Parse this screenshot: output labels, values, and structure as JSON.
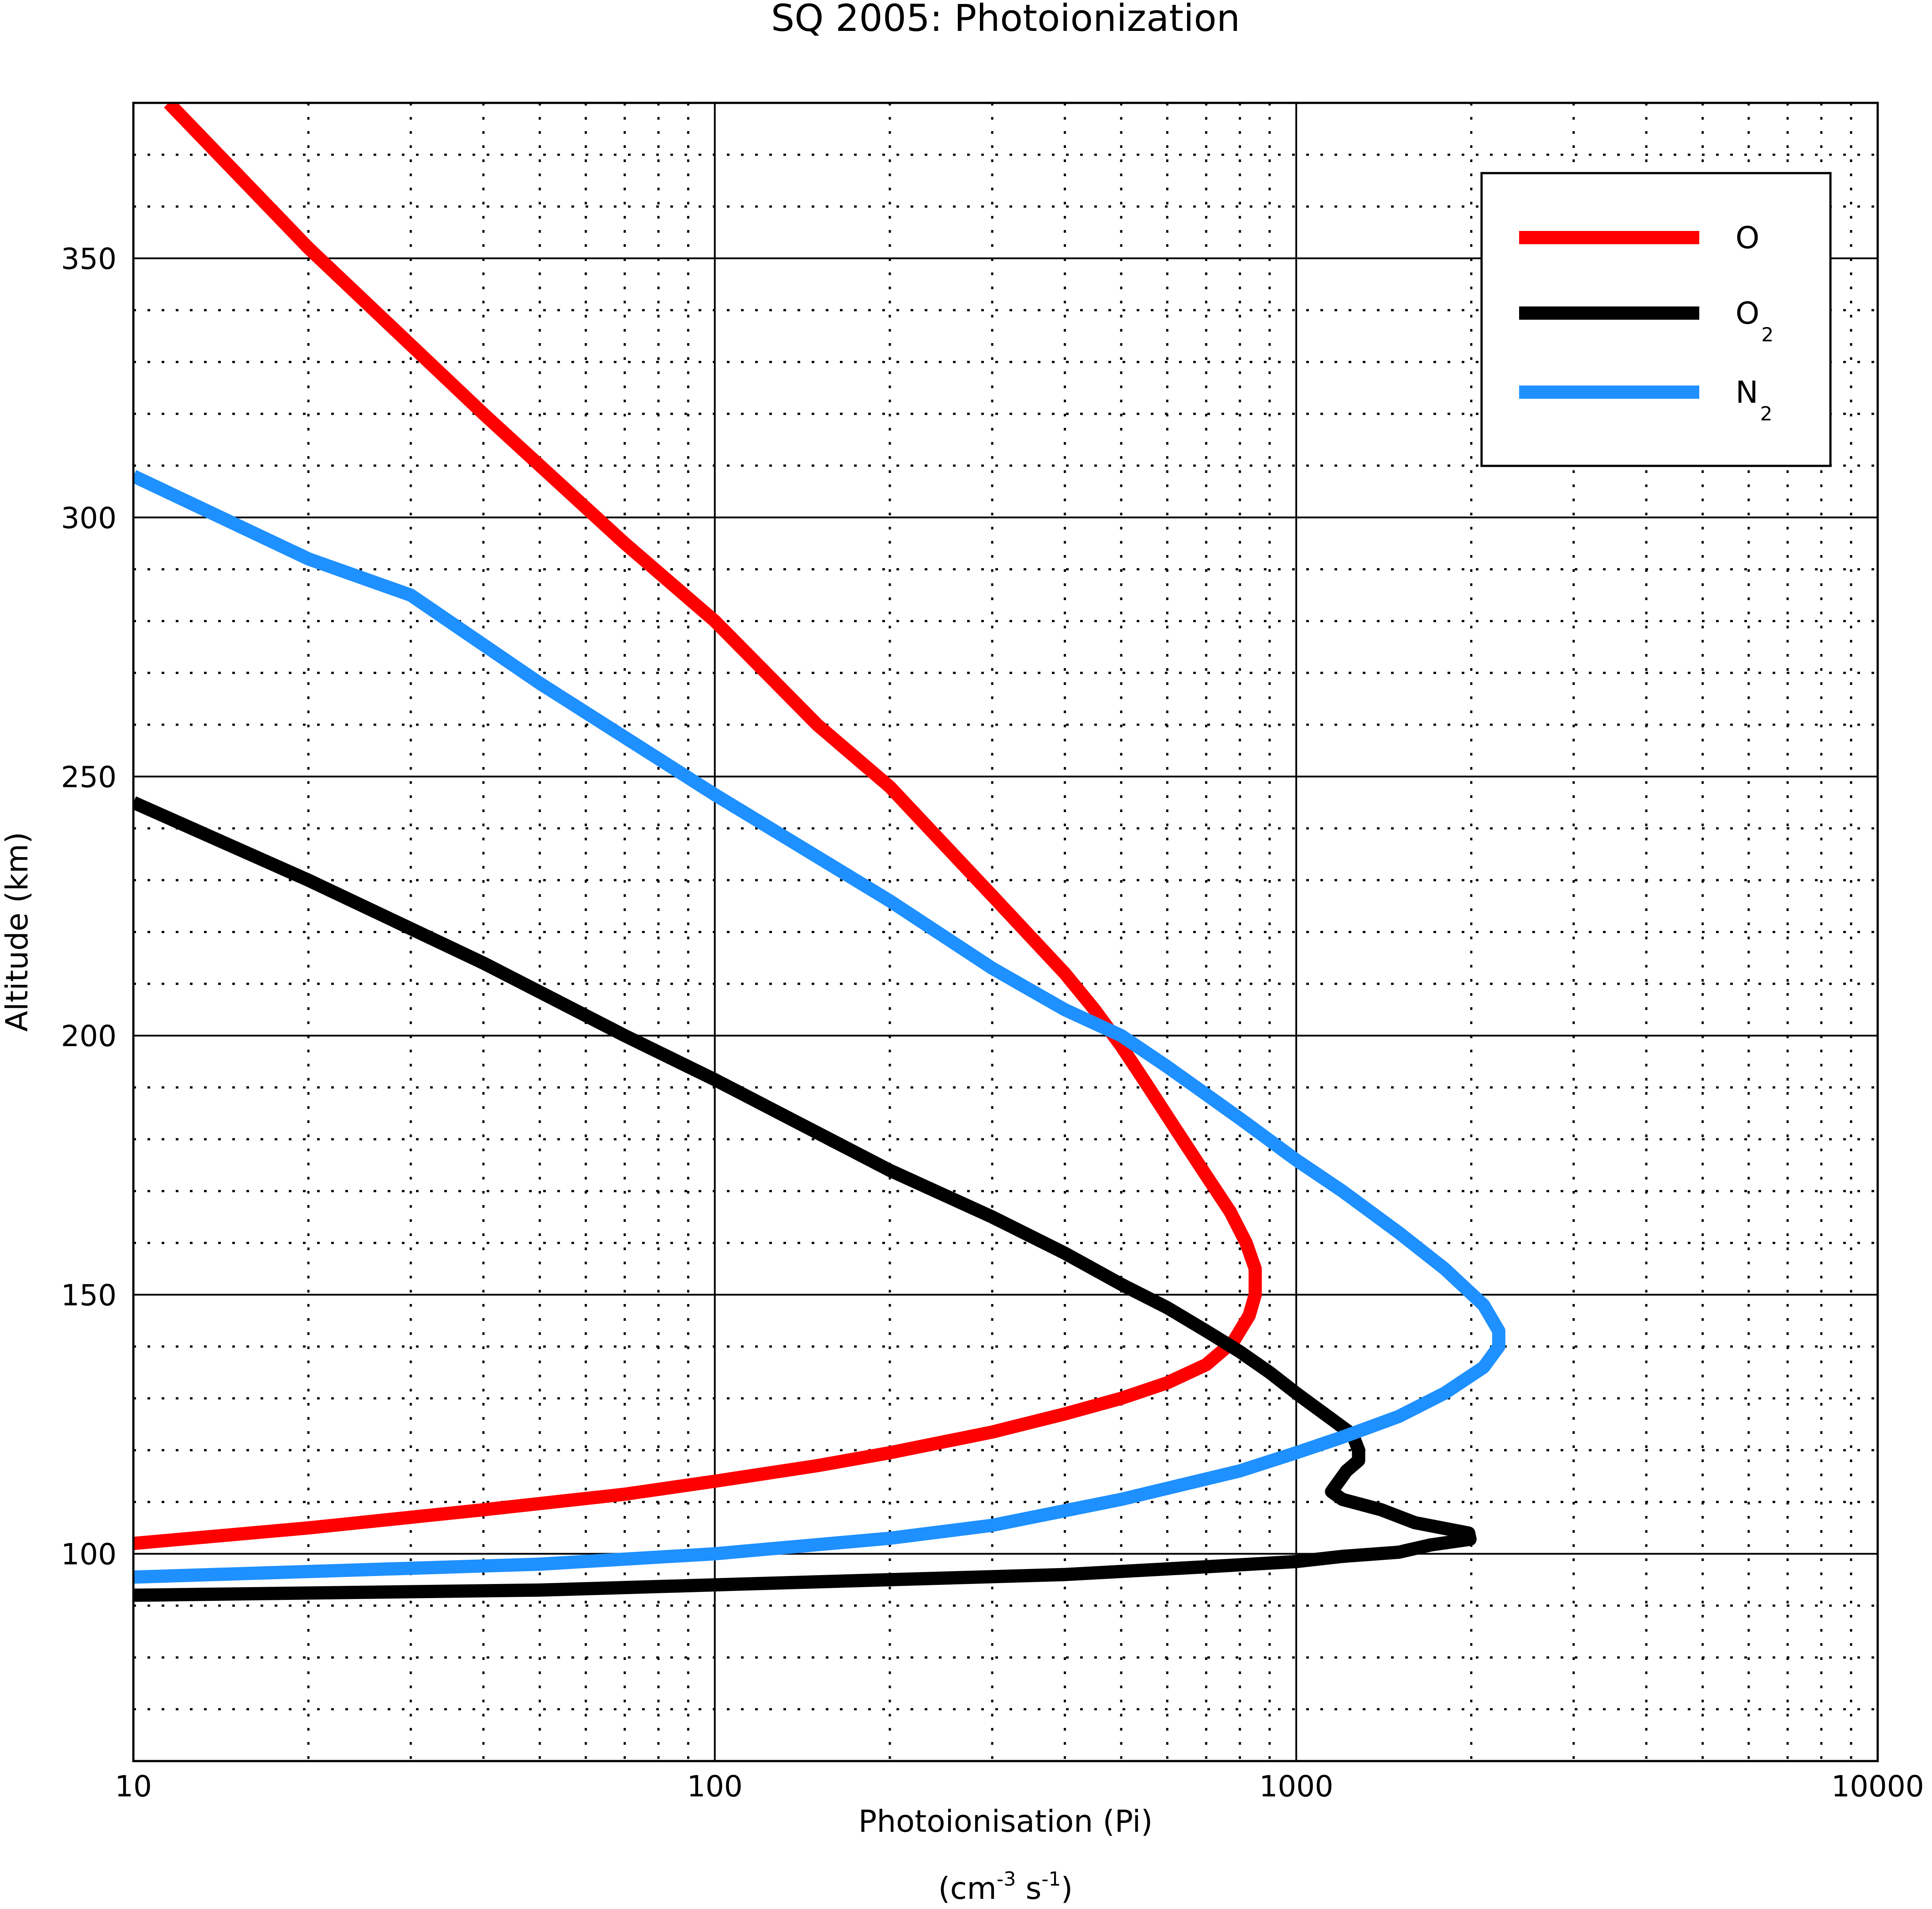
{
  "chart_data": {
    "type": "line",
    "title": "SQ 2005: Photoionization",
    "xlabel": "Photoionisation (Pi)",
    "xunit": {
      "prefix": "(cm",
      "exp1": "-3",
      "mid": " s",
      "exp2": "-1",
      "suffix": ")"
    },
    "ylabel": "Altitude (km)",
    "xscale": "log",
    "xlim": [
      10,
      10000
    ],
    "ylim": [
      60,
      380
    ],
    "x_ticks": [
      10,
      100,
      1000,
      10000
    ],
    "x_tick_labels": [
      "10",
      "100",
      "1000",
      "10000"
    ],
    "y_ticks": [
      100,
      150,
      200,
      250,
      300,
      350
    ],
    "y_tick_labels": [
      "100",
      "150",
      "200",
      "250",
      "300",
      "350"
    ],
    "grid": {
      "major": "solid",
      "minor": "dotted"
    },
    "legend": {
      "placement": "top-right",
      "entries": [
        {
          "label": "O",
          "sub": ""
        },
        {
          "label": "O",
          "sub": "2"
        },
        {
          "label": "N",
          "sub": "2"
        }
      ]
    },
    "series": [
      {
        "name": "O",
        "color": "#ff0000",
        "points": [
          [
            10,
            102
          ],
          [
            20,
            105
          ],
          [
            40,
            108.5
          ],
          [
            70,
            111.5
          ],
          [
            100,
            114
          ],
          [
            150,
            117
          ],
          [
            200,
            119.5
          ],
          [
            300,
            123.5
          ],
          [
            400,
            127
          ],
          [
            500,
            130
          ],
          [
            600,
            133
          ],
          [
            700,
            136.5
          ],
          [
            780,
            141
          ],
          [
            830,
            146
          ],
          [
            850,
            150
          ],
          [
            850,
            155
          ],
          [
            820,
            160
          ],
          [
            770,
            166
          ],
          [
            700,
            173
          ],
          [
            620,
            182
          ],
          [
            550,
            191
          ],
          [
            500,
            198
          ],
          [
            450,
            205
          ],
          [
            400,
            212
          ],
          [
            300,
            227
          ],
          [
            200,
            248
          ],
          [
            150,
            260
          ],
          [
            100,
            280
          ],
          [
            70,
            295
          ],
          [
            40,
            320
          ],
          [
            20,
            352
          ],
          [
            11.5,
            380
          ]
        ]
      },
      {
        "name": "O2",
        "color": "#000000",
        "points": [
          [
            10,
            92
          ],
          [
            50,
            93
          ],
          [
            100,
            94
          ],
          [
            200,
            95
          ],
          [
            400,
            96
          ],
          [
            700,
            97.5
          ],
          [
            1000,
            98.5
          ],
          [
            1200,
            99.5
          ],
          [
            1500,
            100.3
          ],
          [
            1700,
            101.7
          ],
          [
            1990,
            102.8
          ],
          [
            1980,
            104
          ],
          [
            1600,
            106
          ],
          [
            1400,
            108.5
          ],
          [
            1200,
            110.5
          ],
          [
            1150,
            112
          ],
          [
            1220,
            116
          ],
          [
            1280,
            118
          ],
          [
            1280,
            120
          ],
          [
            1250,
            123
          ],
          [
            1150,
            126
          ],
          [
            1000,
            131
          ],
          [
            900,
            135
          ],
          [
            800,
            139
          ],
          [
            700,
            143
          ],
          [
            600,
            147.5
          ],
          [
            500,
            152
          ],
          [
            400,
            158
          ],
          [
            300,
            165
          ],
          [
            200,
            174
          ],
          [
            100,
            191.5
          ],
          [
            70,
            200
          ],
          [
            40,
            214
          ],
          [
            20,
            230
          ],
          [
            10,
            245
          ]
        ]
      },
      {
        "name": "N2",
        "color": "#1e90ff",
        "points": [
          [
            10,
            95.5
          ],
          [
            50,
            98
          ],
          [
            100,
            100
          ],
          [
            200,
            103
          ],
          [
            300,
            105.5
          ],
          [
            500,
            110.5
          ],
          [
            800,
            116
          ],
          [
            1000,
            119.5
          ],
          [
            1200,
            122.5
          ],
          [
            1500,
            126.5
          ],
          [
            1800,
            131
          ],
          [
            2100,
            136
          ],
          [
            2230,
            140
          ],
          [
            2230,
            143
          ],
          [
            2100,
            148
          ],
          [
            1800,
            155
          ],
          [
            1500,
            162
          ],
          [
            1200,
            170
          ],
          [
            1000,
            176
          ],
          [
            800,
            184
          ],
          [
            600,
            194
          ],
          [
            500,
            200
          ],
          [
            400,
            205
          ],
          [
            300,
            213
          ],
          [
            200,
            226
          ],
          [
            100,
            246.5
          ],
          [
            50,
            268
          ],
          [
            30,
            285
          ],
          [
            20,
            292
          ],
          [
            10,
            308
          ]
        ]
      }
    ]
  }
}
